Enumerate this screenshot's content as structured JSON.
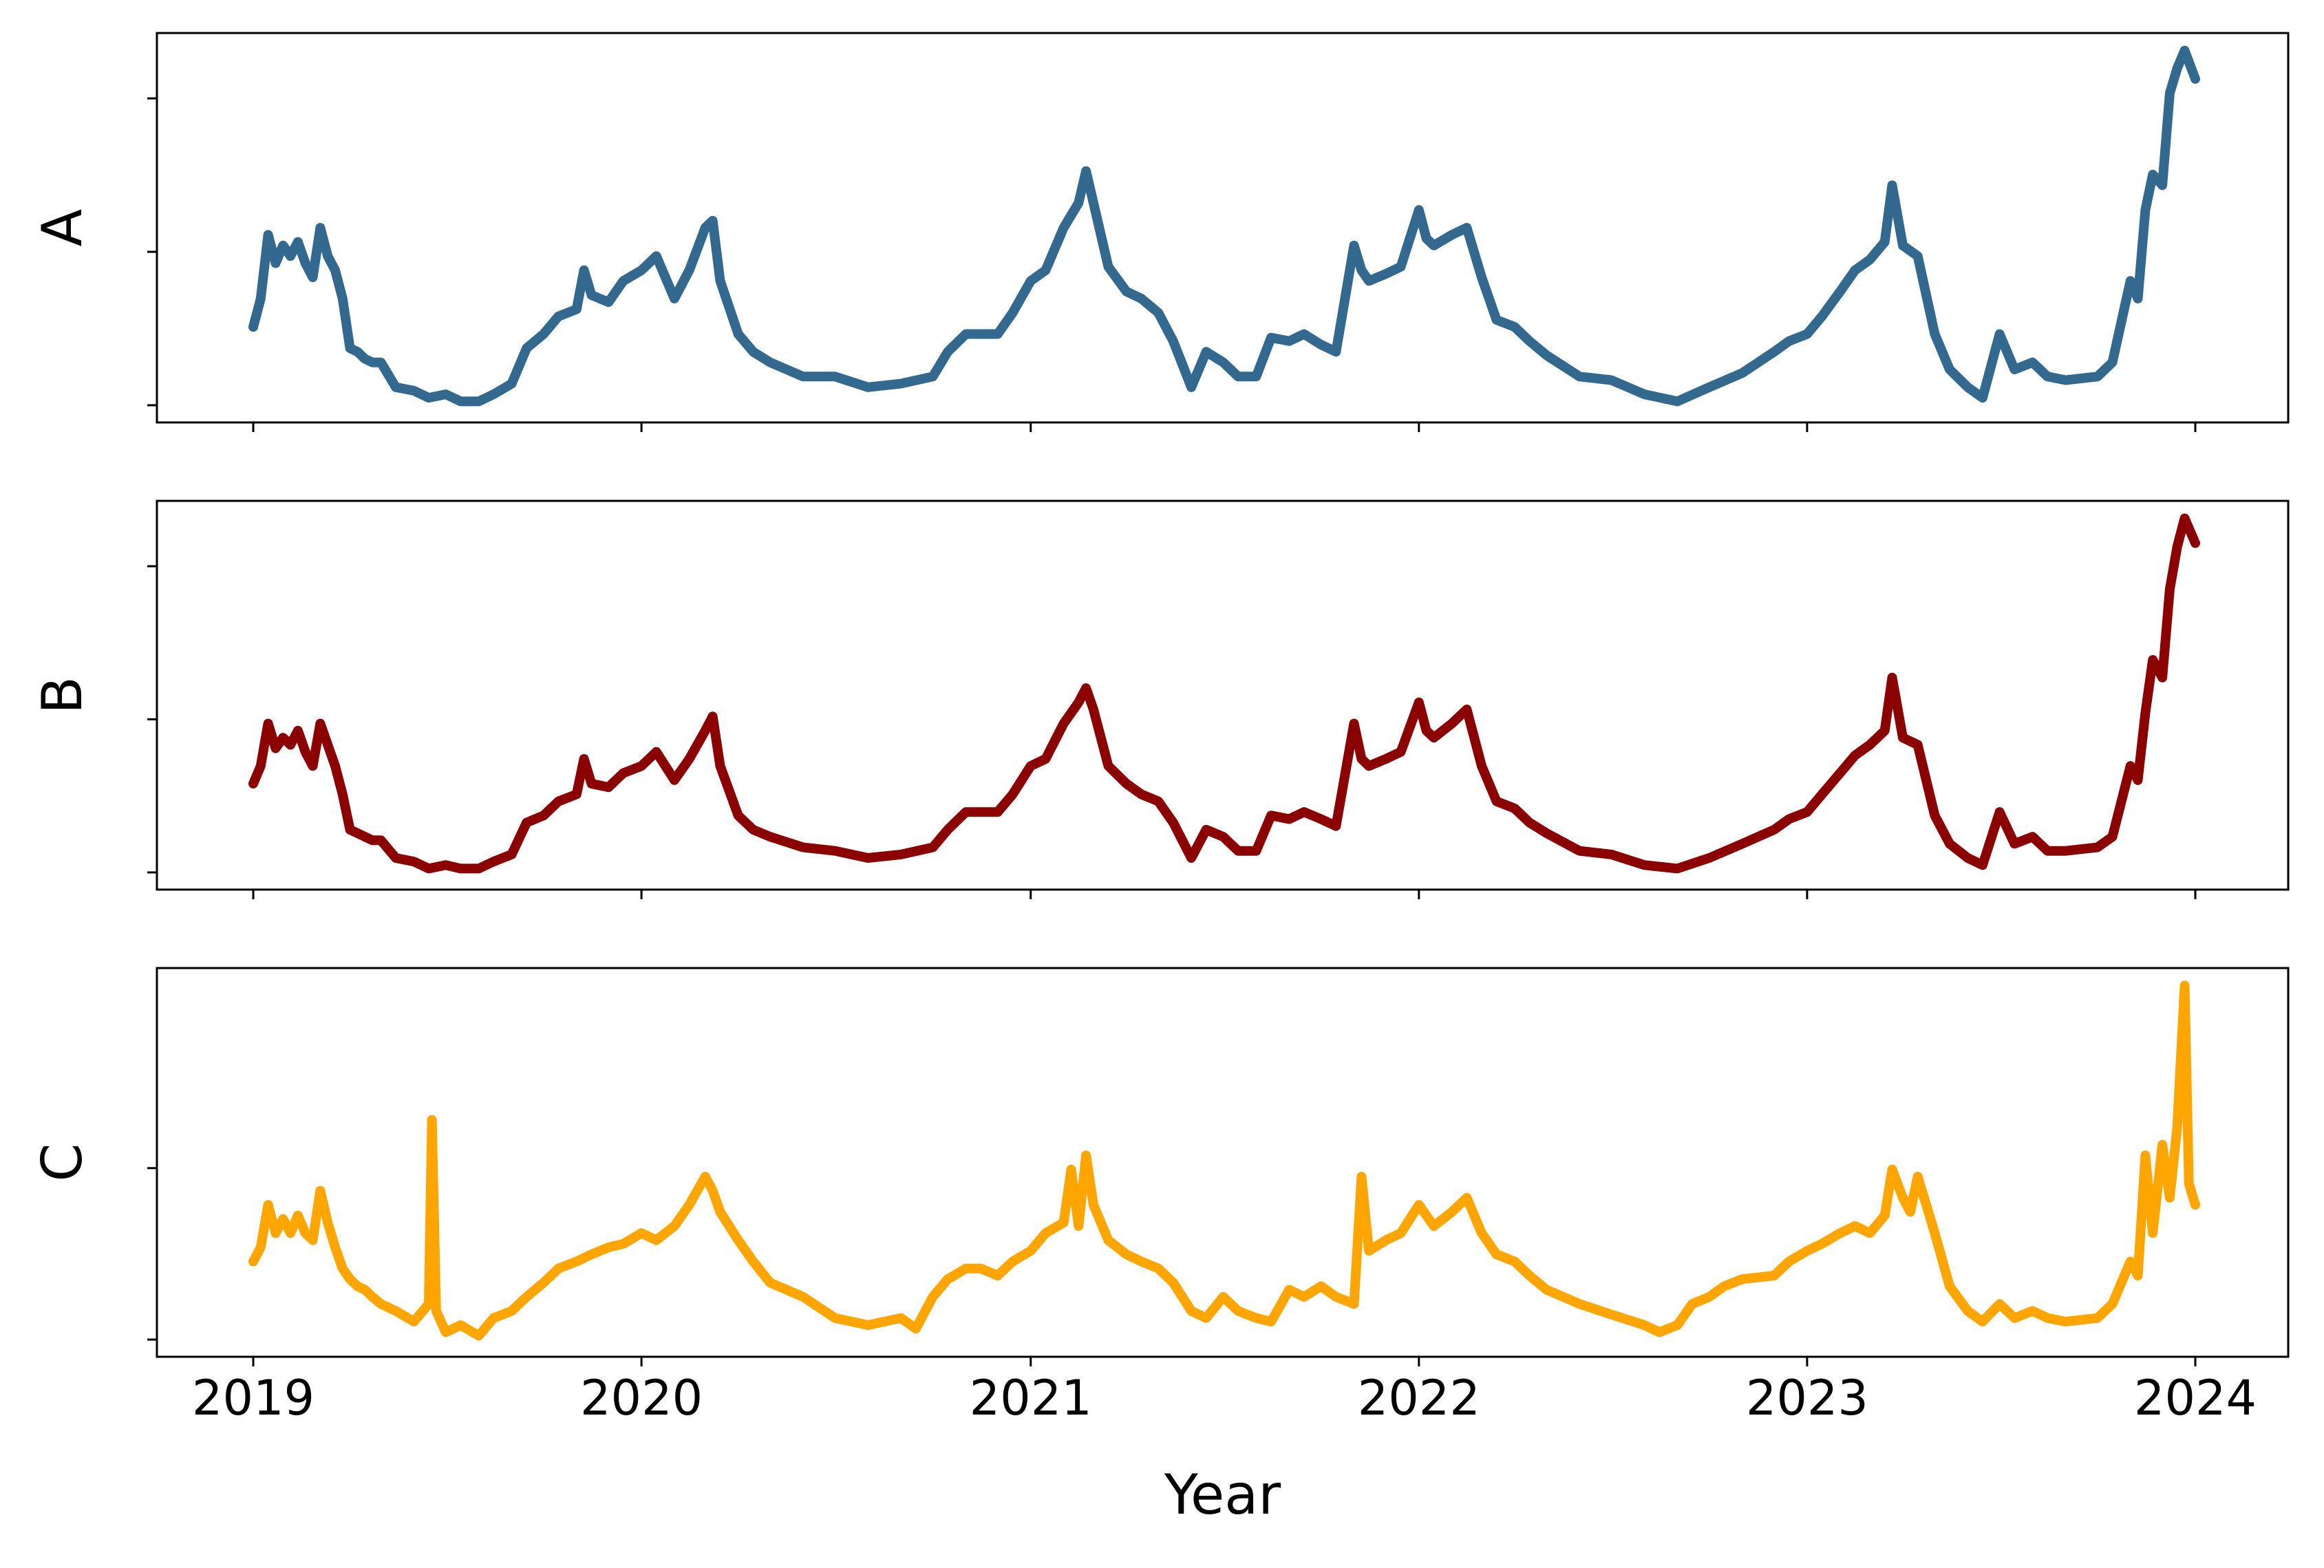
{
  "chart_data": [
    {
      "type": "line",
      "ylabel": "A",
      "color": "#33698F",
      "x_ticks": [
        "2019",
        "2020",
        "2021",
        "2022",
        "2023",
        "2024"
      ],
      "y_tick_count": 3,
      "series": [
        {
          "x": [
            "2019-01-01",
            "2019-01-08",
            "2019-01-15",
            "2019-01-22",
            "2019-01-29",
            "2019-02-05",
            "2019-02-12",
            "2019-02-19",
            "2019-02-26",
            "2019-03-05",
            "2019-03-12",
            "2019-03-19",
            "2019-03-26",
            "2019-04-02",
            "2019-04-09",
            "2019-04-16",
            "2019-04-23",
            "2019-05-01",
            "2019-05-15",
            "2019-06-01",
            "2019-06-15",
            "2019-07-01",
            "2019-07-15",
            "2019-08-01",
            "2019-08-15",
            "2019-09-01",
            "2019-09-15",
            "2019-10-01",
            "2019-10-15",
            "2019-11-01",
            "2019-11-08",
            "2019-11-15",
            "2019-12-01",
            "2019-12-15",
            "2020-01-01",
            "2020-01-15",
            "2020-02-01",
            "2020-02-15",
            "2020-03-01",
            "2020-03-08",
            "2020-03-15",
            "2020-04-01",
            "2020-04-15",
            "2020-05-01",
            "2020-06-01",
            "2020-07-01",
            "2020-08-01",
            "2020-09-01",
            "2020-10-01",
            "2020-10-15",
            "2020-11-01",
            "2020-11-15",
            "2020-12-01",
            "2020-12-15",
            "2021-01-01",
            "2021-01-15",
            "2021-02-01",
            "2021-02-15",
            "2021-02-22",
            "2021-03-01",
            "2021-03-15",
            "2021-04-01",
            "2021-04-15",
            "2021-05-01",
            "2021-05-15",
            "2021-06-01",
            "2021-06-15",
            "2021-07-01",
            "2021-07-15",
            "2021-08-01",
            "2021-08-15",
            "2021-09-01",
            "2021-09-15",
            "2021-10-01",
            "2021-10-15",
            "2021-11-01",
            "2021-11-08",
            "2021-11-15",
            "2021-12-01",
            "2021-12-15",
            "2022-01-01",
            "2022-01-08",
            "2022-01-15",
            "2022-02-01",
            "2022-02-15",
            "2022-03-01",
            "2022-03-15",
            "2022-04-01",
            "2022-04-15",
            "2022-05-01",
            "2022-06-01",
            "2022-07-01",
            "2022-08-01",
            "2022-09-01",
            "2022-10-01",
            "2022-11-01",
            "2022-12-01",
            "2022-12-15",
            "2023-01-01",
            "2023-01-15",
            "2023-02-01",
            "2023-02-15",
            "2023-03-01",
            "2023-03-15",
            "2023-03-22",
            "2023-04-01",
            "2023-04-15",
            "2023-05-01",
            "2023-05-15",
            "2023-06-01",
            "2023-06-15",
            "2023-07-01",
            "2023-07-15",
            "2023-08-01",
            "2023-08-15",
            "2023-09-01",
            "2023-10-01",
            "2023-10-15",
            "2023-11-01",
            "2023-11-08",
            "2023-11-15",
            "2023-11-22",
            "2023-12-01",
            "2023-12-08",
            "2023-12-15",
            "2023-12-22",
            "2024-01-01"
          ],
          "y": [
            0.22,
            0.3,
            0.48,
            0.4,
            0.45,
            0.42,
            0.46,
            0.4,
            0.36,
            0.5,
            0.42,
            0.38,
            0.3,
            0.16,
            0.15,
            0.13,
            0.12,
            0.12,
            0.05,
            0.04,
            0.02,
            0.03,
            0.01,
            0.01,
            0.03,
            0.06,
            0.16,
            0.2,
            0.25,
            0.27,
            0.38,
            0.31,
            0.29,
            0.35,
            0.38,
            0.42,
            0.3,
            0.38,
            0.5,
            0.52,
            0.35,
            0.2,
            0.15,
            0.12,
            0.08,
            0.08,
            0.05,
            0.06,
            0.08,
            0.15,
            0.2,
            0.2,
            0.2,
            0.26,
            0.35,
            0.38,
            0.5,
            0.57,
            0.66,
            0.57,
            0.39,
            0.32,
            0.3,
            0.26,
            0.18,
            0.05,
            0.15,
            0.12,
            0.08,
            0.08,
            0.19,
            0.18,
            0.2,
            0.17,
            0.15,
            0.45,
            0.38,
            0.35,
            0.37,
            0.39,
            0.55,
            0.47,
            0.45,
            0.48,
            0.5,
            0.36,
            0.24,
            0.22,
            0.18,
            0.14,
            0.08,
            0.07,
            0.03,
            0.01,
            0.05,
            0.09,
            0.15,
            0.18,
            0.2,
            0.25,
            0.32,
            0.38,
            0.41,
            0.46,
            0.62,
            0.45,
            0.42,
            0.2,
            0.1,
            0.05,
            0.02,
            0.2,
            0.1,
            0.12,
            0.08,
            0.07,
            0.08,
            0.12,
            0.35,
            0.3,
            0.55,
            0.65,
            0.62,
            0.88,
            0.95,
            1.0,
            0.92
          ]
        }
      ]
    },
    {
      "type": "line",
      "ylabel": "B",
      "color": "#8B0000",
      "x_ticks": [
        "2019",
        "2020",
        "2021",
        "2022",
        "2023",
        "2024"
      ],
      "y_tick_count": 3,
      "series": [
        {
          "x": [
            "2019-01-01",
            "2019-01-08",
            "2019-01-15",
            "2019-01-22",
            "2019-01-29",
            "2019-02-05",
            "2019-02-12",
            "2019-02-19",
            "2019-02-26",
            "2019-03-05",
            "2019-03-12",
            "2019-03-19",
            "2019-03-26",
            "2019-04-02",
            "2019-04-09",
            "2019-04-16",
            "2019-04-23",
            "2019-05-01",
            "2019-05-15",
            "2019-06-01",
            "2019-06-15",
            "2019-07-01",
            "2019-07-15",
            "2019-08-01",
            "2019-08-15",
            "2019-09-01",
            "2019-09-15",
            "2019-10-01",
            "2019-10-15",
            "2019-11-01",
            "2019-11-08",
            "2019-11-15",
            "2019-12-01",
            "2019-12-15",
            "2020-01-01",
            "2020-01-15",
            "2020-02-01",
            "2020-02-15",
            "2020-03-01",
            "2020-03-08",
            "2020-03-15",
            "2020-04-01",
            "2020-04-15",
            "2020-05-01",
            "2020-06-01",
            "2020-07-01",
            "2020-08-01",
            "2020-09-01",
            "2020-10-01",
            "2020-10-15",
            "2020-11-01",
            "2020-11-15",
            "2020-12-01",
            "2020-12-15",
            "2021-01-01",
            "2021-01-15",
            "2021-02-01",
            "2021-02-15",
            "2021-02-22",
            "2021-03-01",
            "2021-03-15",
            "2021-04-01",
            "2021-04-15",
            "2021-05-01",
            "2021-05-15",
            "2021-06-01",
            "2021-06-15",
            "2021-07-01",
            "2021-07-15",
            "2021-08-01",
            "2021-08-15",
            "2021-09-01",
            "2021-09-15",
            "2021-10-01",
            "2021-10-15",
            "2021-11-01",
            "2021-11-08",
            "2021-11-15",
            "2021-12-01",
            "2021-12-15",
            "2022-01-01",
            "2022-01-08",
            "2022-01-15",
            "2022-02-01",
            "2022-02-15",
            "2022-03-01",
            "2022-03-15",
            "2022-04-01",
            "2022-04-15",
            "2022-05-01",
            "2022-06-01",
            "2022-07-01",
            "2022-08-01",
            "2022-09-01",
            "2022-10-01",
            "2022-11-01",
            "2022-12-01",
            "2022-12-15",
            "2023-01-01",
            "2023-01-15",
            "2023-02-01",
            "2023-02-15",
            "2023-03-01",
            "2023-03-15",
            "2023-03-22",
            "2023-04-01",
            "2023-04-15",
            "2023-05-01",
            "2023-05-15",
            "2023-06-01",
            "2023-06-15",
            "2023-07-01",
            "2023-07-15",
            "2023-08-01",
            "2023-08-15",
            "2023-09-01",
            "2023-10-01",
            "2023-10-15",
            "2023-11-01",
            "2023-11-08",
            "2023-11-15",
            "2023-11-22",
            "2023-12-01",
            "2023-12-08",
            "2023-12-15",
            "2023-12-22",
            "2024-01-01"
          ],
          "y": [
            0.25,
            0.3,
            0.42,
            0.35,
            0.38,
            0.36,
            0.4,
            0.34,
            0.3,
            0.42,
            0.36,
            0.3,
            0.22,
            0.12,
            0.11,
            0.1,
            0.09,
            0.09,
            0.04,
            0.03,
            0.01,
            0.02,
            0.01,
            0.01,
            0.03,
            0.05,
            0.14,
            0.16,
            0.2,
            0.22,
            0.32,
            0.25,
            0.24,
            0.28,
            0.3,
            0.34,
            0.26,
            0.32,
            0.4,
            0.44,
            0.3,
            0.16,
            0.12,
            0.1,
            0.07,
            0.06,
            0.04,
            0.05,
            0.07,
            0.12,
            0.17,
            0.17,
            0.17,
            0.22,
            0.3,
            0.32,
            0.42,
            0.48,
            0.52,
            0.46,
            0.3,
            0.25,
            0.22,
            0.2,
            0.14,
            0.04,
            0.12,
            0.1,
            0.06,
            0.06,
            0.16,
            0.15,
            0.17,
            0.15,
            0.13,
            0.42,
            0.32,
            0.3,
            0.32,
            0.34,
            0.48,
            0.4,
            0.38,
            0.42,
            0.46,
            0.3,
            0.2,
            0.18,
            0.14,
            0.11,
            0.06,
            0.05,
            0.02,
            0.01,
            0.04,
            0.08,
            0.12,
            0.15,
            0.17,
            0.22,
            0.28,
            0.33,
            0.36,
            0.4,
            0.55,
            0.38,
            0.36,
            0.16,
            0.08,
            0.04,
            0.02,
            0.17,
            0.08,
            0.1,
            0.06,
            0.06,
            0.07,
            0.1,
            0.3,
            0.26,
            0.45,
            0.6,
            0.55,
            0.8,
            0.92,
            1.0,
            0.93
          ]
        }
      ]
    },
    {
      "type": "line",
      "ylabel": "C",
      "color": "#FFA500",
      "x_ticks": [
        "2019",
        "2020",
        "2021",
        "2022",
        "2023",
        "2024"
      ],
      "y_tick_count": 2,
      "series": [
        {
          "x": [
            "2019-01-01",
            "2019-01-08",
            "2019-01-15",
            "2019-01-22",
            "2019-01-29",
            "2019-02-05",
            "2019-02-12",
            "2019-02-19",
            "2019-02-26",
            "2019-03-05",
            "2019-03-12",
            "2019-03-19",
            "2019-03-26",
            "2019-04-02",
            "2019-04-09",
            "2019-04-16",
            "2019-04-23",
            "2019-05-01",
            "2019-05-15",
            "2019-06-01",
            "2019-06-15",
            "2019-06-18",
            "2019-06-22",
            "2019-07-01",
            "2019-07-15",
            "2019-08-01",
            "2019-08-15",
            "2019-09-01",
            "2019-09-15",
            "2019-10-01",
            "2019-10-15",
            "2019-11-01",
            "2019-11-15",
            "2019-12-01",
            "2019-12-15",
            "2020-01-01",
            "2020-01-15",
            "2020-02-01",
            "2020-02-15",
            "2020-03-01",
            "2020-03-08",
            "2020-03-15",
            "2020-04-01",
            "2020-04-15",
            "2020-05-01",
            "2020-06-01",
            "2020-07-01",
            "2020-08-01",
            "2020-09-01",
            "2020-09-15",
            "2020-10-01",
            "2020-10-15",
            "2020-11-01",
            "2020-11-15",
            "2020-12-01",
            "2020-12-15",
            "2021-01-01",
            "2021-01-15",
            "2021-02-01",
            "2021-02-08",
            "2021-02-15",
            "2021-02-22",
            "2021-03-01",
            "2021-03-15",
            "2021-04-01",
            "2021-04-15",
            "2021-05-01",
            "2021-05-15",
            "2021-06-01",
            "2021-06-15",
            "2021-07-01",
            "2021-07-15",
            "2021-08-01",
            "2021-08-15",
            "2021-09-01",
            "2021-09-15",
            "2021-10-01",
            "2021-10-15",
            "2021-11-01",
            "2021-11-08",
            "2021-11-15",
            "2021-12-01",
            "2021-12-15",
            "2022-01-01",
            "2022-01-15",
            "2022-02-01",
            "2022-02-15",
            "2022-03-01",
            "2022-03-15",
            "2022-04-01",
            "2022-04-15",
            "2022-05-01",
            "2022-06-01",
            "2022-07-01",
            "2022-08-01",
            "2022-08-15",
            "2022-09-01",
            "2022-09-15",
            "2022-10-01",
            "2022-10-15",
            "2022-11-01",
            "2022-12-01",
            "2022-12-15",
            "2023-01-01",
            "2023-01-15",
            "2023-02-01",
            "2023-02-15",
            "2023-03-01",
            "2023-03-15",
            "2023-03-22",
            "2023-04-01",
            "2023-04-08",
            "2023-04-15",
            "2023-05-01",
            "2023-05-15",
            "2023-06-01",
            "2023-06-15",
            "2023-07-01",
            "2023-07-15",
            "2023-08-01",
            "2023-08-15",
            "2023-09-01",
            "2023-10-01",
            "2023-10-15",
            "2023-11-01",
            "2023-11-08",
            "2023-11-15",
            "2023-11-22",
            "2023-12-01",
            "2023-12-08",
            "2023-12-15",
            "2023-12-22",
            "2023-12-26",
            "2024-01-01"
          ],
          "y": [
            0.22,
            0.26,
            0.38,
            0.3,
            0.34,
            0.3,
            0.35,
            0.3,
            0.28,
            0.42,
            0.33,
            0.26,
            0.2,
            0.17,
            0.15,
            0.14,
            0.12,
            0.1,
            0.08,
            0.05,
            0.1,
            0.62,
            0.08,
            0.02,
            0.04,
            0.01,
            0.06,
            0.08,
            0.12,
            0.16,
            0.2,
            0.22,
            0.24,
            0.26,
            0.27,
            0.3,
            0.28,
            0.32,
            0.38,
            0.46,
            0.42,
            0.36,
            0.28,
            0.22,
            0.16,
            0.12,
            0.06,
            0.04,
            0.06,
            0.03,
            0.12,
            0.17,
            0.2,
            0.2,
            0.18,
            0.22,
            0.25,
            0.3,
            0.33,
            0.48,
            0.32,
            0.52,
            0.38,
            0.28,
            0.24,
            0.22,
            0.2,
            0.16,
            0.08,
            0.06,
            0.12,
            0.08,
            0.06,
            0.05,
            0.14,
            0.12,
            0.15,
            0.12,
            0.1,
            0.46,
            0.25,
            0.28,
            0.3,
            0.38,
            0.32,
            0.36,
            0.4,
            0.3,
            0.24,
            0.22,
            0.18,
            0.14,
            0.1,
            0.07,
            0.04,
            0.02,
            0.04,
            0.1,
            0.12,
            0.15,
            0.17,
            0.18,
            0.22,
            0.25,
            0.27,
            0.3,
            0.32,
            0.3,
            0.35,
            0.48,
            0.4,
            0.36,
            0.46,
            0.3,
            0.15,
            0.08,
            0.05,
            0.1,
            0.06,
            0.08,
            0.06,
            0.05,
            0.06,
            0.1,
            0.22,
            0.18,
            0.52,
            0.3,
            0.55,
            0.4,
            0.6,
            1.0,
            0.44,
            0.38
          ]
        }
      ]
    }
  ],
  "xlabel": "Year"
}
